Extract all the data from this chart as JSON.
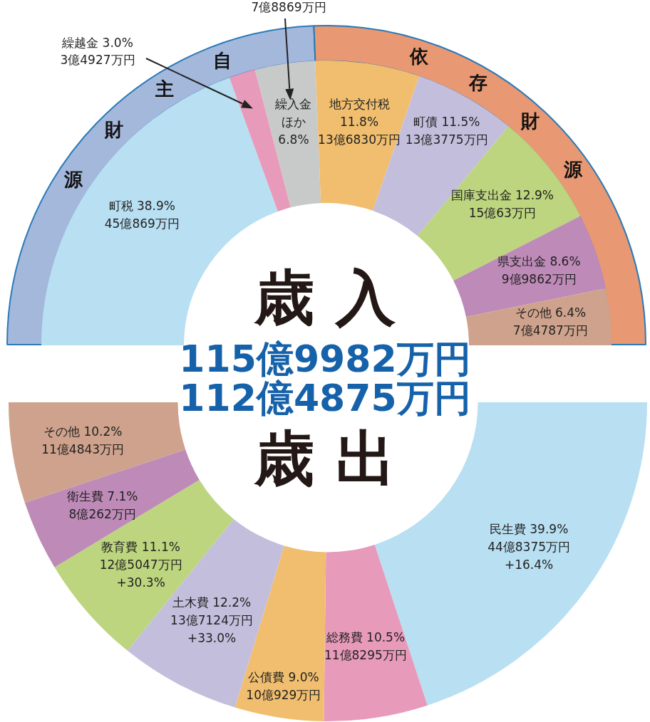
{
  "chart_data": [
    {
      "type": "donut",
      "categories": [
        "自主財源",
        "依存財源"
      ],
      "values": [
        48.7,
        51.2
      ],
      "colors": [
        "#a4b8dc",
        "#e89872"
      ]
    },
    {
      "type": "donut",
      "title": "歳入",
      "subtitle": "115億9982万円",
      "categories": [
        "町税",
        "繰越金",
        "繰入金ほか",
        "地方交付税",
        "町債",
        "国庫支出金",
        "県支出金",
        "その他"
      ],
      "values": [
        38.9,
        3.0,
        6.8,
        11.8,
        11.5,
        12.9,
        8.6,
        6.4
      ],
      "colors": [
        "#b8dff2",
        "#e89aba",
        "#c8c9c9",
        "#f0be6e",
        "#c4bedd",
        "#bcd57e",
        "#be8ab8",
        "#cea28c"
      ],
      "value_labels": [
        "38.9%\n45億869万円",
        "3.0%\n3億4927万円",
        "6.8%",
        "11.8%\n13億6830万円",
        "11.5%\n13億3775万円",
        "12.9%\n15億63万円",
        "8.6%\n9億9862万円",
        "6.4%\n7億4787万円"
      ],
      "annotations": [
        {
          "text": "7億8869万円",
          "x": "繰入金ほか"
        }
      ]
    },
    {
      "type": "donut",
      "title": "歳出",
      "subtitle": "112億4875万円",
      "categories": [
        "民生費",
        "総務費",
        "公債費",
        "土木費",
        "教育費",
        "衛生費",
        "その他"
      ],
      "values": [
        39.9,
        10.5,
        9.0,
        12.2,
        11.1,
        7.1,
        10.2
      ],
      "colors": [
        "#b8dff2",
        "#e89aba",
        "#f0be6e",
        "#c4bedd",
        "#bcd57e",
        "#be8ab8",
        "#cea28c"
      ],
      "value_labels": [
        "39.9%\n44億8375万円\n+16.4%",
        "10.5%\n11億8295万円",
        "9.0%\n10億929万円",
        "12.2%\n13億7124万円\n+33.0%",
        "11.1%\n12億5047万円\n+30.3%",
        "7.1%\n8億262万円",
        "10.2%\n11億4843万円"
      ]
    }
  ]
}
